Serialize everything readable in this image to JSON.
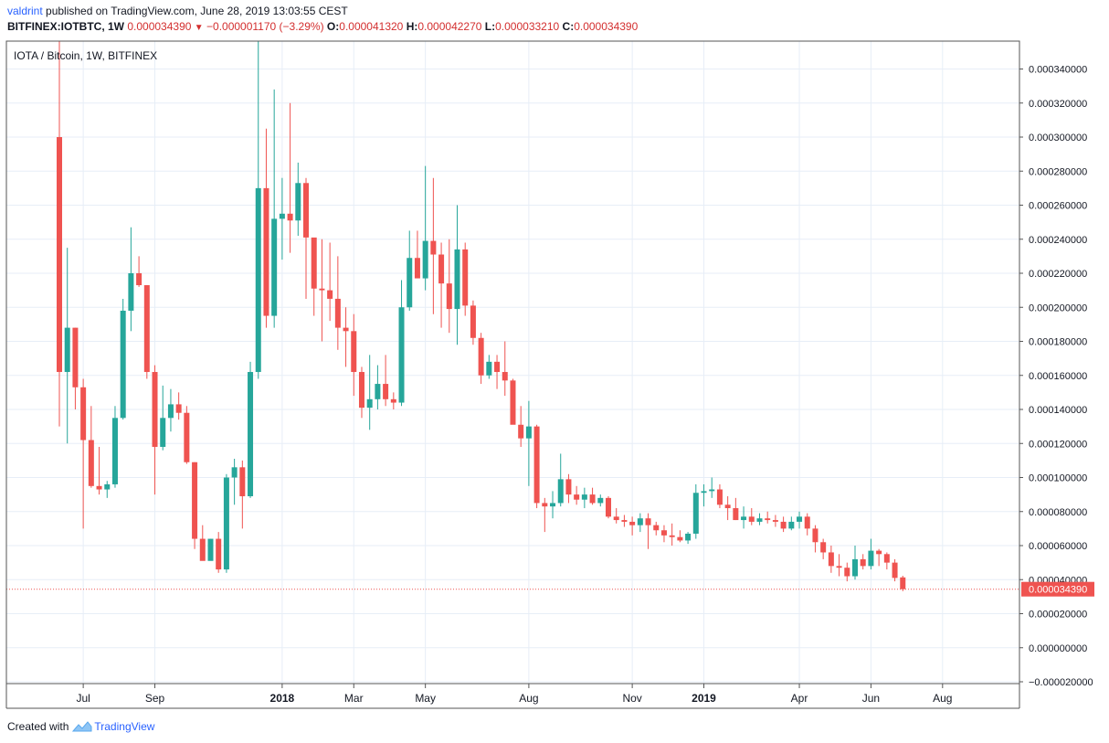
{
  "header": {
    "user": "valdrint",
    "published_text": "published on TradingView.com, June 28, 2019 13:03:55 CEST",
    "symbol": "BITFINEX:IOTBTC, 1W",
    "last": "0.000034390",
    "change": "−0.000001170 (−3.29%)",
    "o_label": "O:",
    "o_val": "0.000041320",
    "h_label": "H:",
    "h_val": "0.000042270",
    "l_label": "L:",
    "l_val": "0.000033210",
    "c_label": "C:",
    "c_val": "0.000034390"
  },
  "footer": {
    "created_with": "Created with",
    "brand": "TradingView"
  },
  "colors": {
    "up": "#26a69a",
    "down": "#ef5350",
    "grid": "#e7eef7",
    "price_label_bg": "#ef5350"
  },
  "chart_data": {
    "type": "candlestick",
    "title": "IOTA / Bitcoin, 1W, BITFINEX",
    "ylim": [
      -2e-05,
      0.00035
    ],
    "y_ticks": [
      "0.000340000",
      "0.000320000",
      "0.000300000",
      "0.000280000",
      "0.000260000",
      "0.000240000",
      "0.000220000",
      "0.000200000",
      "0.000180000",
      "0.000160000",
      "0.000140000",
      "0.000120000",
      "0.000100000",
      "0.000080000",
      "0.000060000",
      "0.000040000",
      "0.000020000",
      "0.000000000",
      "−0.000020000"
    ],
    "y_tick_values": [
      0.00034,
      0.00032,
      0.0003,
      0.00028,
      0.00026,
      0.00024,
      0.00022,
      0.0002,
      0.00018,
      0.00016,
      0.00014,
      0.00012,
      0.0001,
      8e-05,
      6e-05,
      4e-05,
      2e-05,
      0,
      -2e-05
    ],
    "x_ticks": [
      {
        "label": "Jul",
        "index": 3,
        "bold": false
      },
      {
        "label": "Sep",
        "index": 12,
        "bold": false
      },
      {
        "label": "2018",
        "index": 28,
        "bold": true
      },
      {
        "label": "Mar",
        "index": 37,
        "bold": false
      },
      {
        "label": "May",
        "index": 46,
        "bold": false
      },
      {
        "label": "Aug",
        "index": 59,
        "bold": false
      },
      {
        "label": "Nov",
        "index": 72,
        "bold": false
      },
      {
        "label": "2019",
        "index": 81,
        "bold": true
      },
      {
        "label": "Apr",
        "index": 93,
        "bold": false
      },
      {
        "label": "Jun",
        "index": 102,
        "bold": false
      },
      {
        "label": "Aug",
        "index": 111,
        "bold": false
      }
    ],
    "current_price": 3.439e-05,
    "current_price_label": "0.000034390",
    "candles": [
      {
        "o": 0.0003,
        "h": 0.00036,
        "l": 0.00013,
        "c": 0.000162
      },
      {
        "o": 0.000162,
        "h": 0.000235,
        "l": 0.00012,
        "c": 0.000188
      },
      {
        "o": 0.000188,
        "h": 0.000188,
        "l": 0.00014,
        "c": 0.000153
      },
      {
        "o": 0.000153,
        "h": 0.000158,
        "l": 7e-05,
        "c": 0.000122
      },
      {
        "o": 0.000122,
        "h": 0.000142,
        "l": 9.4e-05,
        "c": 9.5e-05
      },
      {
        "o": 9.5e-05,
        "h": 0.000118,
        "l": 9e-05,
        "c": 9.3e-05
      },
      {
        "o": 9.3e-05,
        "h": 9.8e-05,
        "l": 8.8e-05,
        "c": 9.6e-05
      },
      {
        "o": 9.6e-05,
        "h": 0.000142,
        "l": 9.4e-05,
        "c": 0.000135
      },
      {
        "o": 0.000135,
        "h": 0.000205,
        "l": 0.000134,
        "c": 0.000198
      },
      {
        "o": 0.000198,
        "h": 0.000247,
        "l": 0.000186,
        "c": 0.00022
      },
      {
        "o": 0.00022,
        "h": 0.00023,
        "l": 0.000212,
        "c": 0.000213
      },
      {
        "o": 0.000213,
        "h": 0.000213,
        "l": 0.000158,
        "c": 0.000162
      },
      {
        "o": 0.000162,
        "h": 0.000166,
        "l": 9e-05,
        "c": 0.000118
      },
      {
        "o": 0.000118,
        "h": 0.000154,
        "l": 0.000116,
        "c": 0.000135
      },
      {
        "o": 0.000135,
        "h": 0.000152,
        "l": 0.000127,
        "c": 0.000143
      },
      {
        "o": 0.000143,
        "h": 0.00015,
        "l": 0.000134,
        "c": 0.000138
      },
      {
        "o": 0.000138,
        "h": 0.000142,
        "l": 0.000108,
        "c": 0.000109
      },
      {
        "o": 0.000109,
        "h": 0.000109,
        "l": 5.8e-05,
        "c": 6.4e-05
      },
      {
        "o": 6.4e-05,
        "h": 7.2e-05,
        "l": 5.2e-05,
        "c": 5.1e-05
      },
      {
        "o": 5.1e-05,
        "h": 6.4e-05,
        "l": 5.2e-05,
        "c": 6.4e-05
      },
      {
        "o": 6.4e-05,
        "h": 6.8e-05,
        "l": 4.4e-05,
        "c": 4.6e-05
      },
      {
        "o": 4.6e-05,
        "h": 0.000102,
        "l": 4.4e-05,
        "c": 0.0001
      },
      {
        "o": 0.0001,
        "h": 0.000111,
        "l": 8.4e-05,
        "c": 0.000106
      },
      {
        "o": 0.000106,
        "h": 0.00011,
        "l": 7e-05,
        "c": 8.9e-05
      },
      {
        "o": 8.9e-05,
        "h": 0.000168,
        "l": 8.8e-05,
        "c": 0.000162
      },
      {
        "o": 0.000162,
        "h": 0.00036,
        "l": 0.000158,
        "c": 0.00027
      },
      {
        "o": 0.00027,
        "h": 0.000305,
        "l": 0.000188,
        "c": 0.000195
      },
      {
        "o": 0.000195,
        "h": 0.000328,
        "l": 0.000188,
        "c": 0.000252
      },
      {
        "o": 0.000252,
        "h": 0.000276,
        "l": 0.000228,
        "c": 0.000255
      },
      {
        "o": 0.000255,
        "h": 0.00032,
        "l": 0.000232,
        "c": 0.000251
      },
      {
        "o": 0.000251,
        "h": 0.000285,
        "l": 0.000242,
        "c": 0.000273
      },
      {
        "o": 0.000273,
        "h": 0.000276,
        "l": 0.000205,
        "c": 0.000241
      },
      {
        "o": 0.000241,
        "h": 0.00024,
        "l": 0.000195,
        "c": 0.000211
      },
      {
        "o": 0.000211,
        "h": 0.00024,
        "l": 0.00018,
        "c": 0.00021
      },
      {
        "o": 0.00021,
        "h": 0.000238,
        "l": 0.000192,
        "c": 0.000205
      },
      {
        "o": 0.000205,
        "h": 0.00023,
        "l": 0.000175,
        "c": 0.000188
      },
      {
        "o": 0.000188,
        "h": 0.0002,
        "l": 0.000165,
        "c": 0.000186
      },
      {
        "o": 0.000186,
        "h": 0.000196,
        "l": 0.000148,
        "c": 0.000162
      },
      {
        "o": 0.000162,
        "h": 0.000165,
        "l": 0.000135,
        "c": 0.000141
      },
      {
        "o": 0.000141,
        "h": 0.000172,
        "l": 0.000128,
        "c": 0.000146
      },
      {
        "o": 0.000146,
        "h": 0.000166,
        "l": 0.00014,
        "c": 0.000155
      },
      {
        "o": 0.000155,
        "h": 0.000172,
        "l": 0.000142,
        "c": 0.000146
      },
      {
        "o": 0.000146,
        "h": 0.00015,
        "l": 0.00014,
        "c": 0.000144
      },
      {
        "o": 0.000144,
        "h": 0.000216,
        "l": 0.000142,
        "c": 0.0002
      },
      {
        "o": 0.0002,
        "h": 0.000245,
        "l": 0.000198,
        "c": 0.000229
      },
      {
        "o": 0.000229,
        "h": 0.000245,
        "l": 0.000218,
        "c": 0.000217
      },
      {
        "o": 0.000217,
        "h": 0.000283,
        "l": 0.00021,
        "c": 0.000239
      },
      {
        "o": 0.000239,
        "h": 0.000276,
        "l": 0.000196,
        "c": 0.000231
      },
      {
        "o": 0.000231,
        "h": 0.000238,
        "l": 0.000188,
        "c": 0.000214
      },
      {
        "o": 0.000214,
        "h": 0.00024,
        "l": 0.000185,
        "c": 0.000199
      },
      {
        "o": 0.000199,
        "h": 0.00026,
        "l": 0.000178,
        "c": 0.000234
      },
      {
        "o": 0.000234,
        "h": 0.000238,
        "l": 0.000195,
        "c": 0.000201
      },
      {
        "o": 0.000201,
        "h": 0.000204,
        "l": 0.000178,
        "c": 0.000182
      },
      {
        "o": 0.000182,
        "h": 0.000185,
        "l": 0.000155,
        "c": 0.00016
      },
      {
        "o": 0.00016,
        "h": 0.000172,
        "l": 0.000158,
        "c": 0.000168
      },
      {
        "o": 0.000168,
        "h": 0.000172,
        "l": 0.000152,
        "c": 0.000162
      },
      {
        "o": 0.000162,
        "h": 0.00018,
        "l": 0.000148,
        "c": 0.000157
      },
      {
        "o": 0.000157,
        "h": 0.000158,
        "l": 0.000132,
        "c": 0.000131
      },
      {
        "o": 0.000131,
        "h": 0.000142,
        "l": 0.000118,
        "c": 0.000123
      },
      {
        "o": 0.000123,
        "h": 0.000145,
        "l": 9.5e-05,
        "c": 0.00013
      },
      {
        "o": 0.00013,
        "h": 0.000131,
        "l": 8.2e-05,
        "c": 8.5e-05
      },
      {
        "o": 8.5e-05,
        "h": 8.8e-05,
        "l": 6.8e-05,
        "c": 8.3e-05
      },
      {
        "o": 8.3e-05,
        "h": 9.2e-05,
        "l": 7.6e-05,
        "c": 8.5e-05
      },
      {
        "o": 8.5e-05,
        "h": 0.000114,
        "l": 8.3e-05,
        "c": 9.9e-05
      },
      {
        "o": 9.9e-05,
        "h": 0.000102,
        "l": 8.5e-05,
        "c": 9e-05
      },
      {
        "o": 9e-05,
        "h": 9.5e-05,
        "l": 8.4e-05,
        "c": 8.7e-05
      },
      {
        "o": 8.7e-05,
        "h": 9.4e-05,
        "l": 8.2e-05,
        "c": 9e-05
      },
      {
        "o": 9e-05,
        "h": 9.4e-05,
        "l": 8.4e-05,
        "c": 8.5e-05
      },
      {
        "o": 8.5e-05,
        "h": 9e-05,
        "l": 8.3e-05,
        "c": 8.8e-05
      },
      {
        "o": 8.8e-05,
        "h": 8.9e-05,
        "l": 7.6e-05,
        "c": 7.7e-05
      },
      {
        "o": 7.7e-05,
        "h": 8.2e-05,
        "l": 7.3e-05,
        "c": 7.5e-05
      },
      {
        "o": 7.5e-05,
        "h": 7.8e-05,
        "l": 7.1e-05,
        "c": 7.4e-05
      },
      {
        "o": 7.4e-05,
        "h": 7.7e-05,
        "l": 6.6e-05,
        "c": 7.2e-05
      },
      {
        "o": 7.2e-05,
        "h": 7.9e-05,
        "l": 6.8e-05,
        "c": 7.6e-05
      },
      {
        "o": 7.6e-05,
        "h": 7.9e-05,
        "l": 5.8e-05,
        "c": 7.2e-05
      },
      {
        "o": 7.2e-05,
        "h": 7.4e-05,
        "l": 6.6e-05,
        "c": 6.9e-05
      },
      {
        "o": 6.9e-05,
        "h": 7.2e-05,
        "l": 6.2e-05,
        "c": 6.6e-05
      },
      {
        "o": 6.6e-05,
        "h": 7.3e-05,
        "l": 6e-05,
        "c": 6.5e-05
      },
      {
        "o": 6.5e-05,
        "h": 6.9e-05,
        "l": 6.2e-05,
        "c": 6.3e-05
      },
      {
        "o": 6.3e-05,
        "h": 6.8e-05,
        "l": 6.1e-05,
        "c": 6.7e-05
      },
      {
        "o": 6.7e-05,
        "h": 9.6e-05,
        "l": 6.4e-05,
        "c": 9.1e-05
      },
      {
        "o": 9.1e-05,
        "h": 9.6e-05,
        "l": 8.3e-05,
        "c": 9.2e-05
      },
      {
        "o": 9.2e-05,
        "h": 0.0001,
        "l": 8.8e-05,
        "c": 9.3e-05
      },
      {
        "o": 9.3e-05,
        "h": 9.6e-05,
        "l": 8.2e-05,
        "c": 8.4e-05
      },
      {
        "o": 8.4e-05,
        "h": 8.9e-05,
        "l": 7.5e-05,
        "c": 8.2e-05
      },
      {
        "o": 8.2e-05,
        "h": 8.8e-05,
        "l": 7.5e-05,
        "c": 7.5e-05
      },
      {
        "o": 7.5e-05,
        "h": 8.3e-05,
        "l": 7e-05,
        "c": 7.7e-05
      },
      {
        "o": 7.7e-05,
        "h": 8.2e-05,
        "l": 7.2e-05,
        "c": 7.4e-05
      },
      {
        "o": 7.4e-05,
        "h": 7.9e-05,
        "l": 7.2e-05,
        "c": 7.6e-05
      },
      {
        "o": 7.6e-05,
        "h": 8e-05,
        "l": 7.3e-05,
        "c": 7.5e-05
      },
      {
        "o": 7.5e-05,
        "h": 7.8e-05,
        "l": 7.1e-05,
        "c": 7.4e-05
      },
      {
        "o": 7.4e-05,
        "h": 7.7e-05,
        "l": 6.8e-05,
        "c": 7e-05
      },
      {
        "o": 7e-05,
        "h": 7.7e-05,
        "l": 6.9e-05,
        "c": 7.4e-05
      },
      {
        "o": 7.4e-05,
        "h": 8e-05,
        "l": 7e-05,
        "c": 7.7e-05
      },
      {
        "o": 7.7e-05,
        "h": 7.9e-05,
        "l": 6.6e-05,
        "c": 7e-05
      },
      {
        "o": 7e-05,
        "h": 7.2e-05,
        "l": 5.6e-05,
        "c": 6.2e-05
      },
      {
        "o": 6.2e-05,
        "h": 6.4e-05,
        "l": 5.2e-05,
        "c": 5.6e-05
      },
      {
        "o": 5.6e-05,
        "h": 6e-05,
        "l": 4.4e-05,
        "c": 4.8e-05
      },
      {
        "o": 4.8e-05,
        "h": 5.5e-05,
        "l": 4.2e-05,
        "c": 4.7e-05
      },
      {
        "o": 4.7e-05,
        "h": 5e-05,
        "l": 3.9e-05,
        "c": 4.2e-05
      },
      {
        "o": 4.2e-05,
        "h": 6e-05,
        "l": 4e-05,
        "c": 5.2e-05
      },
      {
        "o": 5.2e-05,
        "h": 5.5e-05,
        "l": 4.6e-05,
        "c": 4.8e-05
      },
      {
        "o": 4.8e-05,
        "h": 6.4e-05,
        "l": 4.6e-05,
        "c": 5.7e-05
      },
      {
        "o": 5.7e-05,
        "h": 5.8e-05,
        "l": 4.8e-05,
        "c": 5.5e-05
      },
      {
        "o": 5.5e-05,
        "h": 5.6e-05,
        "l": 4.6e-05,
        "c": 5e-05
      },
      {
        "o": 5e-05,
        "h": 5.2e-05,
        "l": 3.9e-05,
        "c": 4.1e-05
      },
      {
        "o": 4.132e-05,
        "h": 4.227e-05,
        "l": 3.321e-05,
        "c": 3.439e-05
      }
    ]
  }
}
